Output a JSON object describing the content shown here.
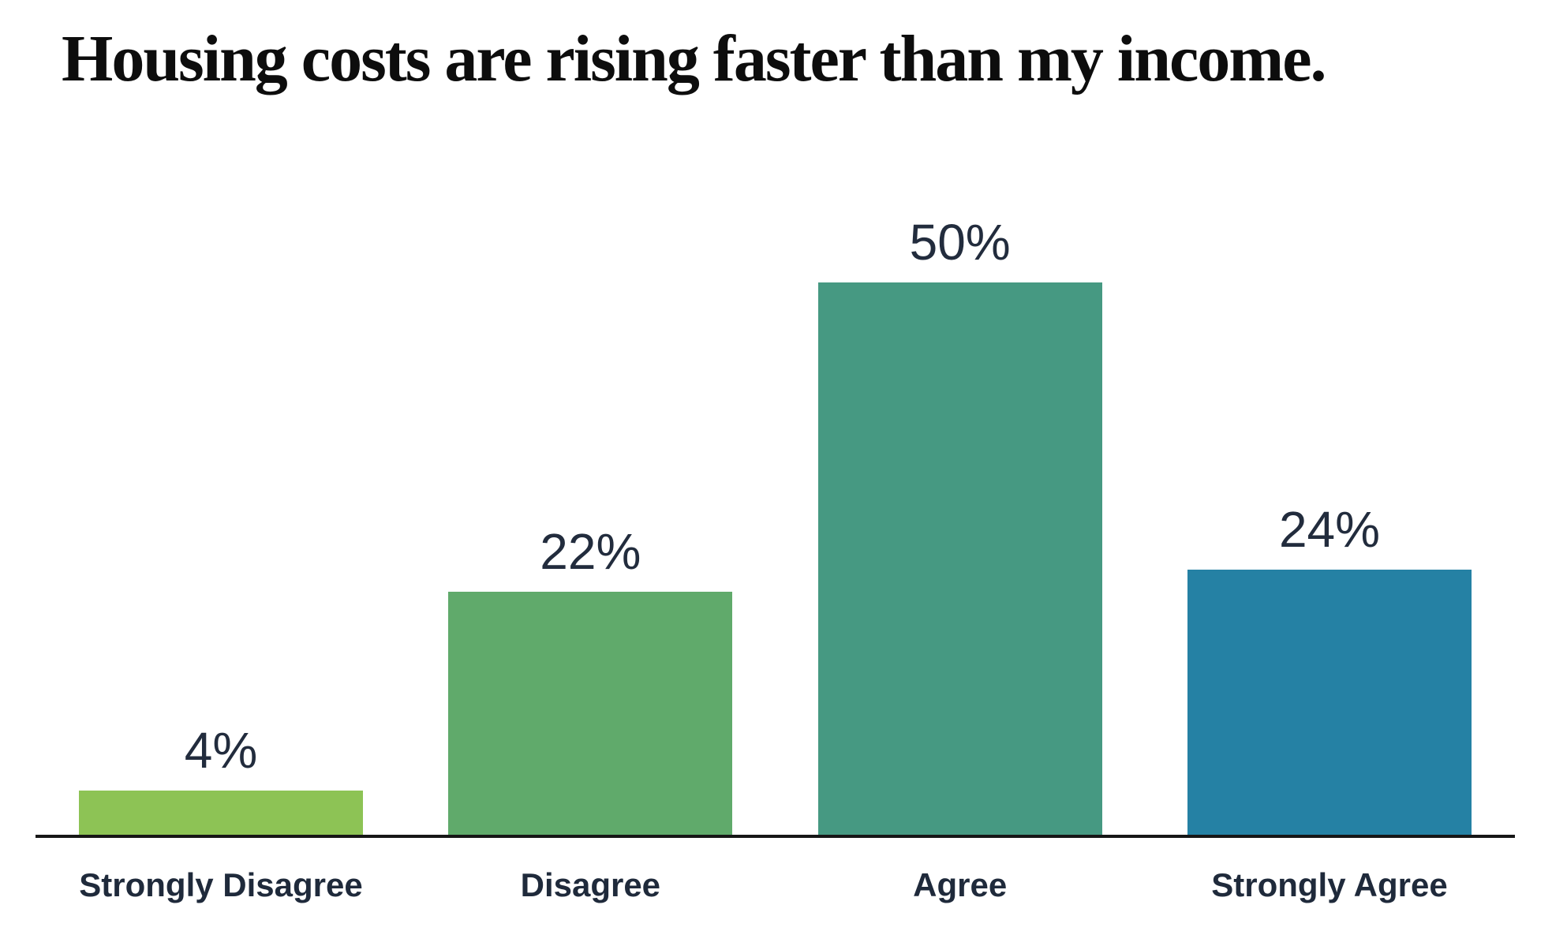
{
  "title": "Housing costs are rising faster than my income.",
  "chart_data": {
    "type": "bar",
    "title": "Housing costs are rising faster than my income.",
    "categories": [
      "Strongly Disagree",
      "Disagree",
      "Agree",
      "Strongly Agree"
    ],
    "values": [
      4,
      22,
      50,
      24
    ],
    "value_labels": [
      "4%",
      "22%",
      "50%",
      "24%"
    ],
    "colors": [
      "#8dc355",
      "#60aa6b",
      "#469982",
      "#2581a4"
    ],
    "xlabel": "",
    "ylabel": "",
    "ylim": [
      0,
      50
    ],
    "grid": false,
    "legend": false,
    "value_label_color": "#222c3d",
    "category_label_color": "#1f2a3b",
    "title_color": "#0d0d0d",
    "axis_color": "#161616",
    "background_color": "#ffffff"
  }
}
